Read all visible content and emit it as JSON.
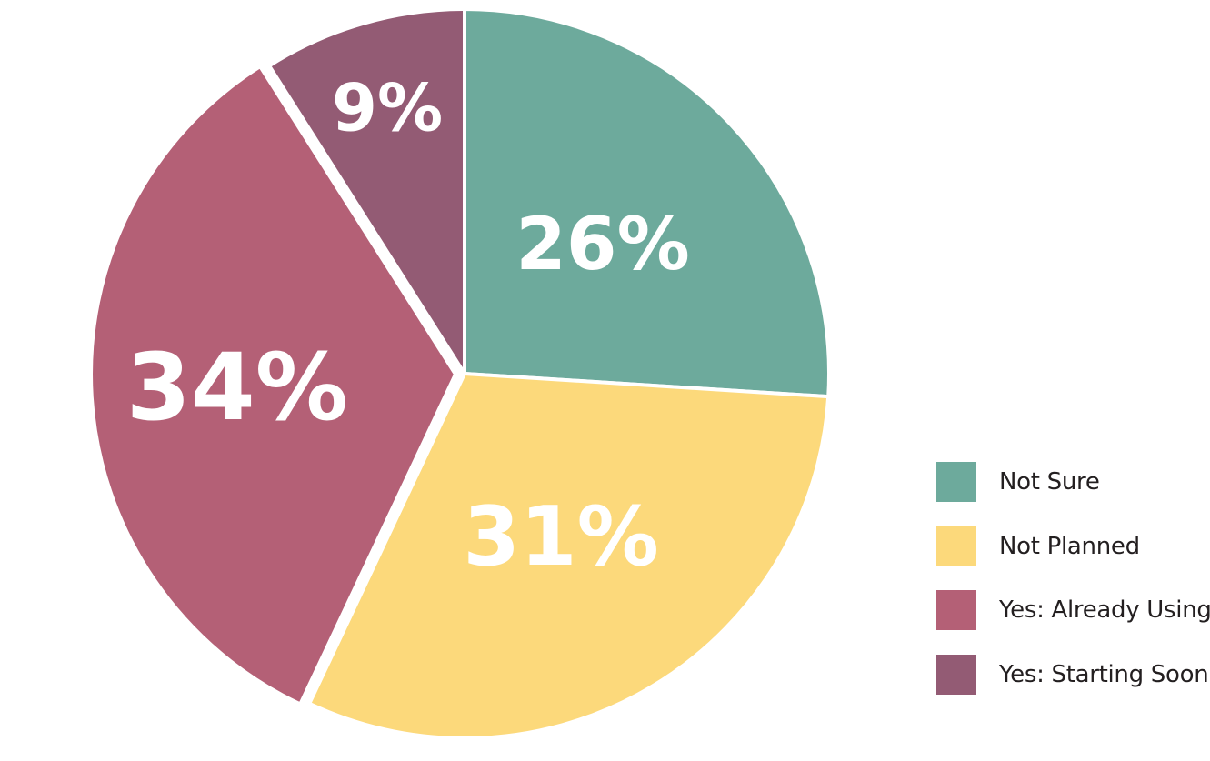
{
  "chart_data": {
    "type": "pie",
    "title": "",
    "slices": [
      {
        "name": "Not Sure",
        "value": 26,
        "label": "26%",
        "color": "#6daa9c"
      },
      {
        "name": "Not Planned",
        "value": 31,
        "label": "31%",
        "color": "#fcd97b"
      },
      {
        "name": "Yes: Already Using",
        "value": 34,
        "label": "34%",
        "color": "#b46076",
        "exploded": true
      },
      {
        "name": "Yes: Starting Soon",
        "value": 9,
        "label": "9%",
        "color": "#935b74"
      }
    ],
    "start_angle": "12 o'clock",
    "direction": "clockwise",
    "legend_position": "bottom-right"
  }
}
